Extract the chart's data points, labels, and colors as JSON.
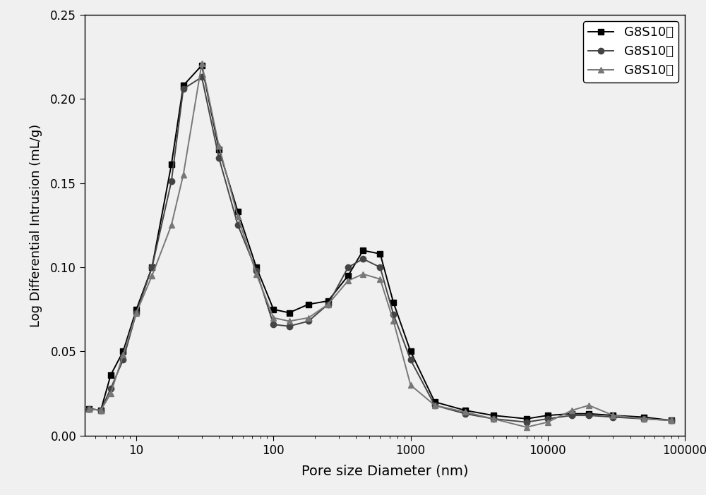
{
  "title": "",
  "xlabel": "Pore size Diameter (nm)",
  "ylabel": "Log Differential Intrusion (mL/g)",
  "xlim_log": [
    4.2,
    100000
  ],
  "ylim": [
    0.0,
    0.25
  ],
  "series": [
    {
      "label": "G8S10上",
      "color": "#000000",
      "marker": "s",
      "linewidth": 1.4,
      "x": [
        4.5,
        5.5,
        6.5,
        8,
        10,
        13,
        18,
        22,
        30,
        40,
        55,
        75,
        100,
        130,
        180,
        250,
        350,
        450,
        600,
        750,
        1000,
        1500,
        2500,
        4000,
        7000,
        10000,
        15000,
        20000,
        30000,
        50000,
        80000
      ],
      "y": [
        0.016,
        0.015,
        0.036,
        0.05,
        0.075,
        0.1,
        0.161,
        0.208,
        0.22,
        0.17,
        0.133,
        0.1,
        0.075,
        0.073,
        0.078,
        0.08,
        0.095,
        0.11,
        0.108,
        0.079,
        0.05,
        0.02,
        0.015,
        0.012,
        0.01,
        0.012,
        0.013,
        0.013,
        0.012,
        0.011,
        0.009
      ]
    },
    {
      "label": "G8S10中",
      "color": "#444444",
      "marker": "o",
      "linewidth": 1.4,
      "x": [
        4.5,
        5.5,
        6.5,
        8,
        10,
        13,
        18,
        22,
        30,
        40,
        55,
        75,
        100,
        130,
        180,
        250,
        350,
        450,
        600,
        750,
        1000,
        1500,
        2500,
        4000,
        7000,
        10000,
        15000,
        20000,
        30000,
        50000,
        80000
      ],
      "y": [
        0.016,
        0.015,
        0.028,
        0.045,
        0.073,
        0.1,
        0.151,
        0.206,
        0.213,
        0.165,
        0.125,
        0.098,
        0.066,
        0.065,
        0.068,
        0.078,
        0.1,
        0.105,
        0.1,
        0.072,
        0.045,
        0.018,
        0.013,
        0.01,
        0.008,
        0.01,
        0.012,
        0.012,
        0.011,
        0.01,
        0.009
      ]
    },
    {
      "label": "G8S10下",
      "color": "#777777",
      "marker": "^",
      "linewidth": 1.4,
      "x": [
        4.5,
        5.5,
        6.5,
        8,
        10,
        13,
        18,
        22,
        30,
        40,
        55,
        75,
        100,
        130,
        180,
        250,
        350,
        450,
        600,
        750,
        1000,
        1500,
        2500,
        4000,
        7000,
        10000,
        15000,
        20000,
        30000,
        50000,
        80000
      ],
      "y": [
        0.016,
        0.015,
        0.025,
        0.048,
        0.073,
        0.095,
        0.125,
        0.155,
        0.221,
        0.172,
        0.13,
        0.096,
        0.07,
        0.068,
        0.07,
        0.078,
        0.092,
        0.096,
        0.093,
        0.068,
        0.03,
        0.018,
        0.014,
        0.01,
        0.005,
        0.008,
        0.015,
        0.018,
        0.012,
        0.01,
        0.009
      ]
    }
  ],
  "legend_loc": "upper right",
  "markersize": 6,
  "yticks": [
    0.0,
    0.05,
    0.1,
    0.15,
    0.2,
    0.25
  ],
  "background_color": "#e8e8e8",
  "figure_facecolor": "#e8e8e8"
}
